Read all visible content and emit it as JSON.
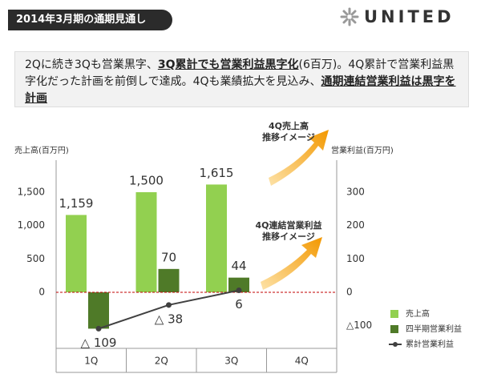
{
  "header": {
    "title": "2014年3月期の通期見通し",
    "logo": "UNITED"
  },
  "summary": {
    "parts": [
      {
        "text": "2Qに続き3Qも営業黒字、",
        "emphasis": false
      },
      {
        "text": "3Q累計でも営業利益黒字化",
        "emphasis": true
      },
      {
        "text": "(6百万)。4Q累計で営業利益黒字化だった計画を前倒しで達成。4Qも業績拡大を見込み、",
        "emphasis": false
      },
      {
        "text": "通期連結営業利益は黒字を計画",
        "emphasis": true
      }
    ]
  },
  "chart_data": {
    "type": "bar",
    "y_label": "売上高(百万円)",
    "y2_label": "営業利益(百万円)",
    "categories": [
      "1Q",
      "2Q",
      "3Q",
      "4Q"
    ],
    "series": [
      {
        "name": "売上高",
        "color": "#92d050",
        "values": [
          1159,
          1500,
          1615,
          null
        ],
        "value_labels": [
          "1,159",
          "1,500",
          "1,615",
          null
        ]
      },
      {
        "name": "四半期営業利益",
        "color": "#4f7a28",
        "axis": "y2",
        "values": [
          -109,
          70,
          44,
          null
        ],
        "value_labels": [
          null,
          "70",
          "44",
          null
        ]
      },
      {
        "name": "累計営業利益",
        "color": "#404040",
        "axis": "y2",
        "type": "line",
        "values": [
          -109,
          -38,
          6,
          null
        ],
        "value_labels": [
          "△ 109",
          "△ 38",
          "6",
          null
        ]
      }
    ],
    "ylim": [
      -840,
      1980
    ],
    "yticks": [
      0,
      500,
      {
        "value": 1000,
        "label": "1,000"
      },
      {
        "value": 1500,
        "label": "1,500"
      }
    ],
    "y2lim": [
      -168,
      396
    ],
    "y2ticks": [
      {
        "value": -100,
        "label": "△100"
      },
      0,
      100,
      200,
      300
    ],
    "annotations": [
      {
        "lines": [
          "4Q売上高",
          "推移イメージ"
        ]
      },
      {
        "lines": [
          "4Q連結営業利益",
          "推移イメージ"
        ]
      }
    ]
  }
}
